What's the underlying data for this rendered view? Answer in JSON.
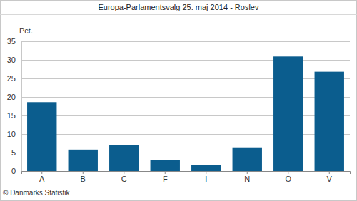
{
  "chart_data": {
    "type": "bar",
    "title": "Europa-Parlamentsvalg 25. maj 2014 - Roslev",
    "ylabel": "Pct.",
    "categories": [
      "A",
      "B",
      "C",
      "F",
      "I",
      "N",
      "O",
      "V"
    ],
    "values": [
      18.6,
      5.8,
      7.0,
      2.9,
      1.7,
      6.4,
      30.9,
      26.8
    ],
    "color": "#0b5d8e",
    "ylim": [
      0,
      35
    ],
    "yticks": [
      0,
      5,
      10,
      15,
      20,
      25,
      30,
      35
    ],
    "grid": true,
    "annotations": [
      "© Danmarks Statistik"
    ]
  }
}
